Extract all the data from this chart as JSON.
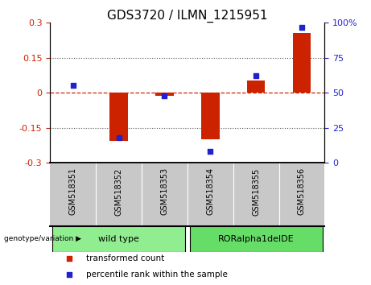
{
  "title": "GDS3720 / ILMN_1215951",
  "samples": [
    "GSM518351",
    "GSM518352",
    "GSM518353",
    "GSM518354",
    "GSM518355",
    "GSM518356"
  ],
  "red_bars": [
    0.002,
    -0.205,
    -0.012,
    -0.2,
    0.052,
    0.255
  ],
  "blue_dots": [
    55,
    18,
    48,
    8,
    62,
    97
  ],
  "ylim_left": [
    -0.3,
    0.3
  ],
  "ylim_right": [
    0,
    100
  ],
  "yticks_left": [
    -0.3,
    -0.15,
    0,
    0.15,
    0.3
  ],
  "yticks_right": [
    0,
    25,
    50,
    75,
    100
  ],
  "ytick_labels_right": [
    "0",
    "25",
    "50",
    "75",
    "100%"
  ],
  "group_configs": [
    {
      "label": "wild type",
      "start": 0,
      "end": 2,
      "color": "#90EE90"
    },
    {
      "label": "RORalpha1delDE",
      "start": 3,
      "end": 5,
      "color": "#66DD66"
    }
  ],
  "legend_items": [
    {
      "color": "#CC2200",
      "label": "transformed count"
    },
    {
      "color": "#2222CC",
      "label": "percentile rank within the sample"
    }
  ],
  "bar_color": "#CC2200",
  "dot_color": "#2222CC",
  "hline_color": "#CC2200",
  "dotted_line_color": "#555555",
  "bg_color": "#FFFFFF",
  "plot_bg": "#FFFFFF",
  "sample_bg": "#C8C8C8",
  "title_fontsize": 11,
  "tick_fontsize": 8,
  "sample_fontsize": 7,
  "group_fontsize": 8,
  "legend_fontsize": 7.5
}
